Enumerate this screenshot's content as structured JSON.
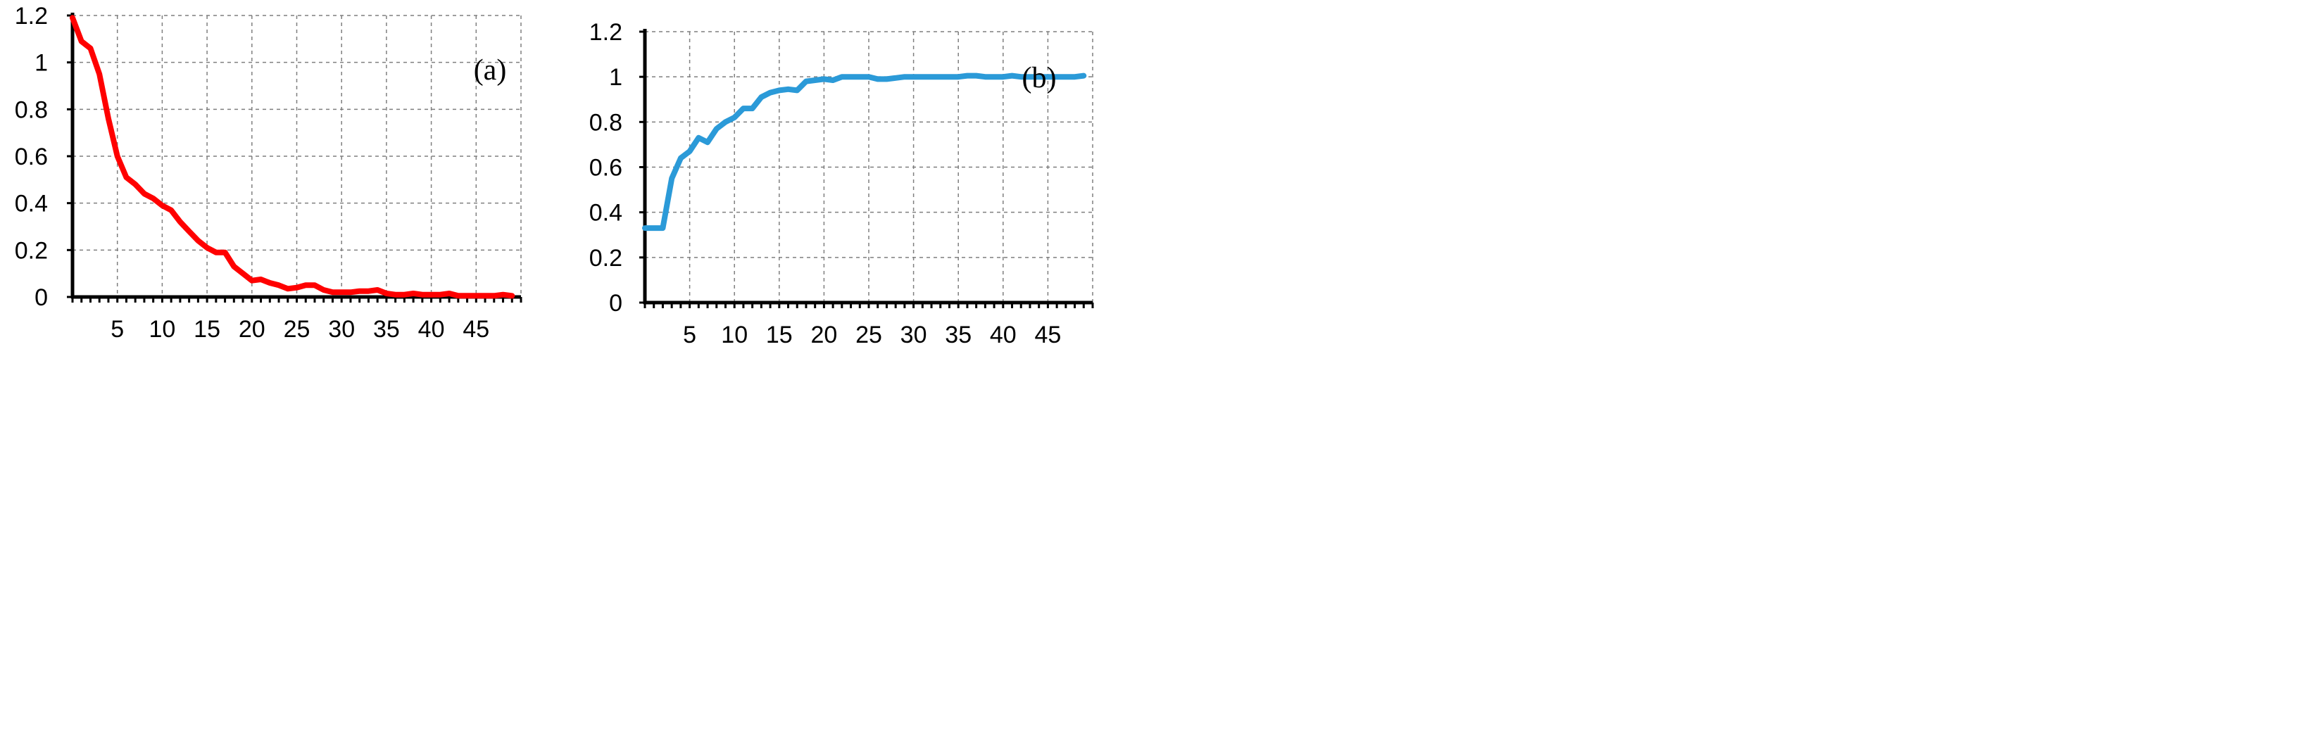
{
  "chart_data": [
    {
      "type": "line",
      "annotation": "(a)",
      "color": "#ff0000",
      "xlim": [
        0,
        50
      ],
      "ylim": [
        0,
        1.2
      ],
      "y_ticks": [
        "0",
        "0.2",
        "0.4",
        "0.6",
        "0.8",
        "1",
        "1.2"
      ],
      "x_ticks": [
        "5",
        "10",
        "15",
        "20",
        "25",
        "30",
        "35",
        "40",
        "45"
      ],
      "grid": true,
      "x": [
        0,
        1,
        2,
        3,
        4,
        5,
        6,
        7,
        8,
        9,
        10,
        11,
        12,
        13,
        14,
        15,
        16,
        17,
        18,
        19,
        20,
        21,
        22,
        23,
        24,
        25,
        26,
        27,
        28,
        29,
        30,
        31,
        32,
        33,
        34,
        35,
        36,
        37,
        38,
        39,
        40,
        41,
        42,
        43,
        44,
        45,
        46,
        47,
        48,
        49
      ],
      "values": [
        1.19,
        1.09,
        1.06,
        0.95,
        0.76,
        0.6,
        0.51,
        0.48,
        0.44,
        0.42,
        0.39,
        0.37,
        0.32,
        0.28,
        0.24,
        0.21,
        0.19,
        0.19,
        0.13,
        0.1,
        0.07,
        0.075,
        0.06,
        0.05,
        0.035,
        0.04,
        0.05,
        0.05,
        0.03,
        0.02,
        0.02,
        0.02,
        0.025,
        0.025,
        0.03,
        0.015,
        0.01,
        0.01,
        0.015,
        0.01,
        0.01,
        0.01,
        0.015,
        0.005,
        0.005,
        0.005,
        0.005,
        0.005,
        0.01,
        0.005
      ]
    },
    {
      "type": "line",
      "annotation": "(b)",
      "color": "#2b9ad8",
      "xlim": [
        0,
        50
      ],
      "ylim": [
        0,
        1.2
      ],
      "y_ticks": [
        "0",
        "0.2",
        "0.4",
        "0.6",
        "0.8",
        "1",
        "1.2"
      ],
      "x_ticks": [
        "5",
        "10",
        "15",
        "20",
        "25",
        "30",
        "35",
        "40",
        "45"
      ],
      "grid": true,
      "x": [
        0,
        1,
        2,
        3,
        4,
        5,
        6,
        7,
        8,
        9,
        10,
        11,
        12,
        13,
        14,
        15,
        16,
        17,
        18,
        19,
        20,
        21,
        22,
        23,
        24,
        25,
        26,
        27,
        28,
        29,
        30,
        31,
        32,
        33,
        34,
        35,
        36,
        37,
        38,
        39,
        40,
        41,
        42,
        43,
        44,
        45,
        46,
        47,
        48,
        49
      ],
      "values": [
        0.33,
        0.33,
        0.33,
        0.55,
        0.64,
        0.67,
        0.73,
        0.71,
        0.77,
        0.8,
        0.82,
        0.86,
        0.86,
        0.91,
        0.93,
        0.94,
        0.945,
        0.94,
        0.98,
        0.985,
        0.99,
        0.985,
        1.0,
        1.0,
        1.0,
        1.0,
        0.99,
        0.99,
        0.995,
        1.0,
        1.0,
        1.0,
        1.0,
        1.0,
        1.0,
        1.0,
        1.005,
        1.005,
        1.0,
        1.0,
        1.0,
        1.005,
        1.0,
        1.0,
        1.0,
        1.0,
        1.0,
        1.0,
        1.0,
        1.005
      ]
    }
  ]
}
